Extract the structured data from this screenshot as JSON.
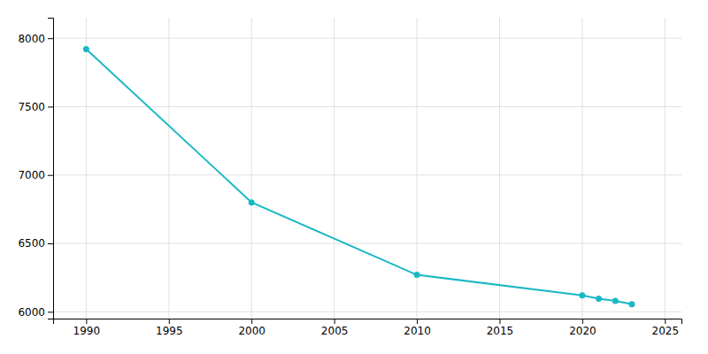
{
  "chart_data": {
    "type": "line",
    "x": [
      1990,
      2000,
      2010,
      2020,
      2021,
      2022,
      2023
    ],
    "values": [
      7920,
      6800,
      6270,
      6120,
      6095,
      6080,
      6055
    ],
    "color": "#1ab8c4",
    "marker": "circle",
    "xlim": [
      1988,
      2026
    ],
    "ylim": [
      5950,
      8150
    ],
    "xticks": [
      1990,
      1995,
      2000,
      2005,
      2010,
      2015,
      2020,
      2025
    ],
    "yticks": [
      6000,
      6500,
      7000,
      7500,
      8000
    ],
    "grid": true
  }
}
